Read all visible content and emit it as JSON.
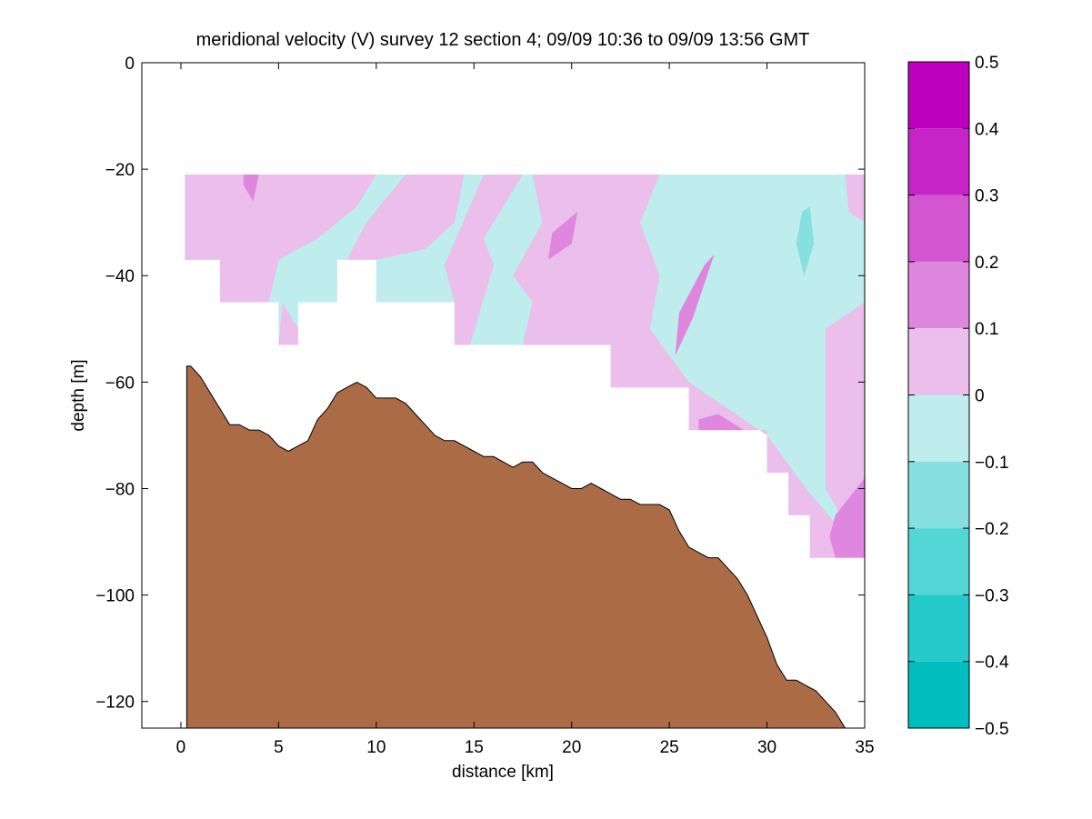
{
  "chart_data": {
    "type": "heatmap",
    "title": "meridional velocity (V) survey 12 section 4; 09/09 10:36 to 09/09 13:56 GMT",
    "xlabel": "distance [km]",
    "ylabel": "depth [m]",
    "xlim": [
      -2,
      35
    ],
    "ylim": [
      -125,
      0
    ],
    "xticks": [
      0,
      5,
      10,
      15,
      20,
      25,
      30,
      35
    ],
    "yticks": [
      0,
      -20,
      -40,
      -60,
      -80,
      -100,
      -120
    ],
    "colorbar": {
      "range": [
        -0.5,
        0.5
      ],
      "ticks": [
        "0.5",
        "0.4",
        "0.3",
        "0.2",
        "0.1",
        "0",
        "−0.1",
        "−0.2",
        "−0.3",
        "−0.4",
        "−0.5"
      ],
      "bands": [
        {
          "from": 0.4,
          "to": 0.5,
          "color": "#bd00bd"
        },
        {
          "from": 0.3,
          "to": 0.4,
          "color": "#c724c7"
        },
        {
          "from": 0.2,
          "to": 0.3,
          "color": "#d255d2"
        },
        {
          "from": 0.1,
          "to": 0.2,
          "color": "#df87df"
        },
        {
          "from": 0.0,
          "to": 0.1,
          "color": "#ebbeeb"
        },
        {
          "from": -0.1,
          "to": 0.0,
          "color": "#bfecec"
        },
        {
          "from": -0.2,
          "to": -0.1,
          "color": "#87dfdf"
        },
        {
          "from": -0.3,
          "to": -0.2,
          "color": "#55d6d6"
        },
        {
          "from": -0.4,
          "to": -0.3,
          "color": "#24caca"
        },
        {
          "from": -0.5,
          "to": -0.4,
          "color": "#00bebe"
        }
      ]
    },
    "bathymetry": {
      "color": "#ab6b47",
      "x": [
        0.3,
        0.5,
        1,
        1.5,
        2,
        2.5,
        3,
        3.5,
        4,
        4.5,
        5,
        5.5,
        6,
        6.5,
        7,
        7.5,
        8,
        8.5,
        9,
        9.5,
        10,
        10.5,
        11,
        11.5,
        12,
        12.5,
        13,
        13.5,
        14,
        14.5,
        15,
        15.5,
        16,
        16.5,
        17,
        17.5,
        18,
        18.5,
        19,
        19.5,
        20,
        20.5,
        21,
        21.5,
        22,
        22.5,
        23,
        23.5,
        24,
        24.5,
        25,
        25.5,
        26,
        26.5,
        27,
        27.5,
        28,
        28.5,
        29,
        29.5,
        30,
        30.5,
        31,
        31.5,
        32,
        32.5,
        33,
        33.5,
        34
      ],
      "depth": [
        -57,
        -57,
        -59,
        -62,
        -65,
        -68,
        -68,
        -69,
        -69,
        -70,
        -72,
        -73,
        -72,
        -71,
        -67,
        -65,
        -62,
        -61,
        -60,
        -61,
        -63,
        -63,
        -63,
        -64,
        -66,
        -68,
        -70,
        -71,
        -71,
        -72,
        -73,
        -74,
        -74,
        -75,
        -76,
        -75,
        -75,
        -77,
        -78,
        -79,
        -80,
        -80,
        -79,
        -80,
        -81,
        -82,
        -82,
        -83,
        -83,
        -83,
        -84,
        -88,
        -91,
        -92,
        -93,
        -93,
        -95,
        -97,
        -100,
        -104,
        -108,
        -113,
        -116,
        -116,
        -117,
        -118,
        -120,
        -122,
        -125
      ]
    },
    "velocity_regions": [
      {
        "band": -0.05,
        "polygon": [
          [
            0.2,
            -21
          ],
          [
            35,
            -21
          ],
          [
            35,
            -93
          ],
          [
            32.2,
            -93
          ],
          [
            32.2,
            -85
          ],
          [
            31.1,
            -85
          ],
          [
            31.1,
            -77
          ],
          [
            30,
            -77
          ],
          [
            30,
            -69
          ],
          [
            26,
            -69
          ],
          [
            26,
            -61
          ],
          [
            22,
            -61
          ],
          [
            22,
            -53
          ],
          [
            14,
            -53
          ],
          [
            14,
            -45
          ],
          [
            10,
            -45
          ],
          [
            10,
            -37
          ],
          [
            8,
            -37
          ],
          [
            8,
            -45
          ],
          [
            6,
            -45
          ],
          [
            6,
            -53
          ],
          [
            5,
            -53
          ],
          [
            5,
            -45
          ],
          [
            2,
            -45
          ],
          [
            2,
            -37
          ],
          [
            0.2,
            -37
          ]
        ]
      },
      {
        "band": 0.05,
        "polygon": [
          [
            0.2,
            -21
          ],
          [
            10,
            -21
          ],
          [
            9,
            -27
          ],
          [
            7,
            -33
          ],
          [
            5,
            -37
          ],
          [
            4.5,
            -45
          ],
          [
            2,
            -45
          ],
          [
            2,
            -37
          ],
          [
            0.2,
            -37
          ]
        ]
      },
      {
        "band": 0.05,
        "polygon": [
          [
            8.5,
            -37
          ],
          [
            9.5,
            -30
          ],
          [
            11.5,
            -21
          ],
          [
            14.5,
            -21
          ],
          [
            14,
            -30
          ],
          [
            12.5,
            -35
          ],
          [
            10,
            -37
          ]
        ]
      },
      {
        "band": 0.05,
        "polygon": [
          [
            5.2,
            -45
          ],
          [
            6,
            -50
          ],
          [
            6,
            -53
          ],
          [
            5,
            -53
          ]
        ]
      },
      {
        "band": 0.05,
        "polygon": [
          [
            15.5,
            -21
          ],
          [
            17.5,
            -21
          ],
          [
            16.5,
            -27
          ],
          [
            15.5,
            -33
          ],
          [
            16,
            -38
          ],
          [
            14.8,
            -53
          ],
          [
            14,
            -53
          ],
          [
            14,
            -45
          ],
          [
            13.5,
            -38
          ]
        ]
      },
      {
        "band": 0.05,
        "polygon": [
          [
            18,
            -21
          ],
          [
            24.5,
            -21
          ],
          [
            23.5,
            -30
          ],
          [
            24.5,
            -40
          ],
          [
            24,
            -50
          ],
          [
            26,
            -60
          ],
          [
            28,
            -65
          ],
          [
            30,
            -70
          ],
          [
            32,
            -80
          ],
          [
            35,
            -93
          ],
          [
            32.2,
            -93
          ],
          [
            32.2,
            -85
          ],
          [
            31.1,
            -85
          ],
          [
            31.1,
            -77
          ],
          [
            30,
            -77
          ],
          [
            30,
            -69
          ],
          [
            26,
            -69
          ],
          [
            26,
            -61
          ],
          [
            22,
            -61
          ],
          [
            22,
            -53
          ],
          [
            17.5,
            -53
          ],
          [
            18,
            -45
          ],
          [
            17,
            -40
          ],
          [
            18.5,
            -30
          ]
        ]
      },
      {
        "band": 0.05,
        "polygon": [
          [
            34,
            -21
          ],
          [
            35,
            -21
          ],
          [
            35,
            -30
          ],
          [
            34.2,
            -28
          ]
        ]
      },
      {
        "band": 0.05,
        "polygon": [
          [
            33,
            -50
          ],
          [
            35,
            -45
          ],
          [
            35,
            -93
          ],
          [
            33,
            -80
          ]
        ]
      },
      {
        "band": 0.15,
        "polygon": [
          [
            3.2,
            -21
          ],
          [
            4,
            -21
          ],
          [
            3.7,
            -26
          ],
          [
            3.2,
            -23
          ]
        ]
      },
      {
        "band": 0.15,
        "polygon": [
          [
            19,
            -32
          ],
          [
            20.3,
            -28
          ],
          [
            20,
            -34
          ],
          [
            18.8,
            -37
          ]
        ]
      },
      {
        "band": 0.15,
        "polygon": [
          [
            26.8,
            -38
          ],
          [
            27.3,
            -36
          ],
          [
            26.2,
            -48
          ],
          [
            25.3,
            -55
          ],
          [
            25.5,
            -47
          ]
        ]
      },
      {
        "band": 0.15,
        "polygon": [
          [
            26.5,
            -67
          ],
          [
            27.5,
            -66
          ],
          [
            28.8,
            -69
          ],
          [
            26.5,
            -69
          ]
        ]
      },
      {
        "band": 0.15,
        "polygon": [
          [
            33.5,
            -85
          ],
          [
            35,
            -78
          ],
          [
            35,
            -93
          ],
          [
            33.5,
            -93
          ],
          [
            33.2,
            -89
          ]
        ]
      },
      {
        "band": -0.15,
        "polygon": [
          [
            31.8,
            -28
          ],
          [
            32.2,
            -27
          ],
          [
            32.4,
            -34
          ],
          [
            31.9,
            -40
          ],
          [
            31.5,
            -34
          ]
        ]
      }
    ]
  }
}
